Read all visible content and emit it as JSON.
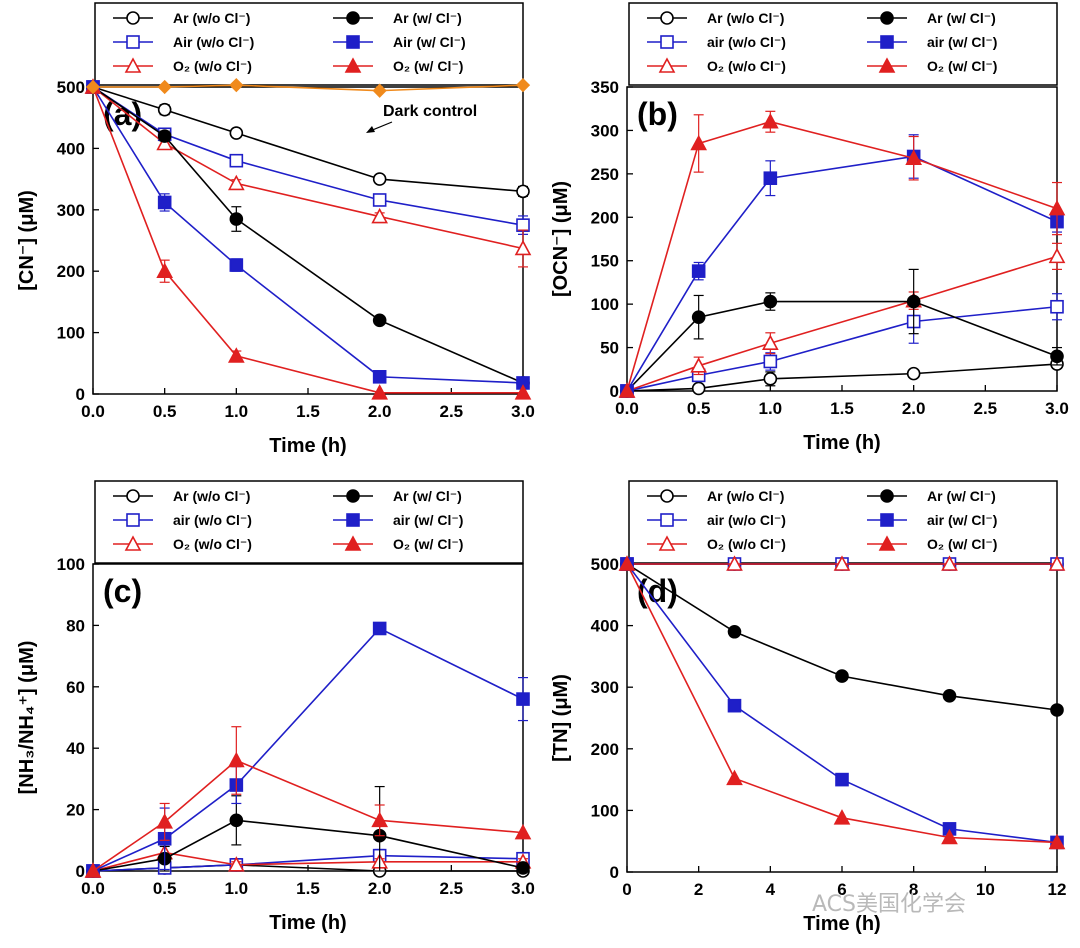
{
  "watermark": "ACS美国化学会",
  "chart_data": [
    {
      "type": "line",
      "panel_label": "(a)",
      "xlabel": "Time (h)",
      "ylabel": "[CN⁻] (μM)",
      "xlim": [
        0,
        3
      ],
      "ylim": [
        0,
        500
      ],
      "xticks": [
        "0.0",
        "0.5",
        "1.0",
        "1.5",
        "2.0",
        "2.5",
        "3.0"
      ],
      "yticks": [
        "0",
        "100",
        "200",
        "300",
        "400",
        "500"
      ],
      "legend_placement": "top, above plot",
      "annotation": "Dark control",
      "series": [
        {
          "name": "Ar (w/o Cl⁻)",
          "color": "#000000",
          "marker": "circle",
          "filled": false,
          "x": [
            0,
            0.5,
            1,
            2,
            3
          ],
          "values": [
            500,
            463,
            425,
            350,
            330
          ],
          "err": [
            0,
            8,
            6,
            6,
            8
          ]
        },
        {
          "name": "Air (w/o Cl⁻)",
          "color": "#1f1fc8",
          "marker": "square",
          "filled": false,
          "x": [
            0,
            0.5,
            1,
            2,
            3
          ],
          "values": [
            500,
            423,
            380,
            316,
            275
          ],
          "err": [
            0,
            10,
            6,
            6,
            15
          ]
        },
        {
          "name": "O₂ (w/o Cl⁻)",
          "color": "#e02020",
          "marker": "triangle",
          "filled": false,
          "x": [
            0,
            0.5,
            1,
            2,
            3
          ],
          "values": [
            500,
            408,
            343,
            289,
            237
          ],
          "err": [
            0,
            8,
            6,
            6,
            30
          ]
        },
        {
          "name": "Ar (w/ Cl⁻)",
          "color": "#000000",
          "marker": "circle",
          "filled": true,
          "x": [
            0,
            0.5,
            1,
            2,
            3
          ],
          "values": [
            500,
            420,
            285,
            120,
            18
          ],
          "err": [
            0,
            8,
            20,
            5,
            3
          ]
        },
        {
          "name": "Air (w/ Cl⁻)",
          "color": "#1f1fc8",
          "marker": "square",
          "filled": true,
          "x": [
            0,
            0.5,
            1,
            2,
            3
          ],
          "values": [
            500,
            312,
            210,
            28,
            18
          ],
          "err": [
            0,
            14,
            10,
            3,
            3
          ]
        },
        {
          "name": "O₂ (w/ Cl⁻)",
          "color": "#e02020",
          "marker": "triangle",
          "filled": true,
          "x": [
            0,
            0.5,
            1,
            2,
            3
          ],
          "values": [
            500,
            200,
            62,
            2,
            2
          ],
          "err": [
            0,
            18,
            8,
            0,
            0
          ]
        },
        {
          "name": "",
          "color": "#f08a1c",
          "marker": "diamond",
          "filled": true,
          "nolegend": true,
          "x": [
            0,
            0.5,
            1,
            2,
            3
          ],
          "values": [
            500,
            500,
            503,
            494,
            503
          ],
          "err": [
            0,
            0,
            0,
            0,
            0
          ]
        }
      ]
    },
    {
      "type": "line",
      "panel_label": "(b)",
      "xlabel": "Time (h)",
      "ylabel": "[OCN⁻] (μM)",
      "xlim": [
        0,
        3
      ],
      "ylim": [
        0,
        350
      ],
      "xticks": [
        "0.0",
        "0.5",
        "1.0",
        "1.5",
        "2.0",
        "2.5",
        "3.0"
      ],
      "yticks": [
        "0",
        "50",
        "100",
        "150",
        "200",
        "250",
        "300",
        "350"
      ],
      "legend_placement": "top, above plot",
      "series": [
        {
          "name": "Ar (w/o Cl⁻)",
          "color": "#000000",
          "marker": "circle",
          "filled": false,
          "x": [
            0,
            0.5,
            1,
            2,
            3
          ],
          "values": [
            0,
            3,
            14,
            20,
            31
          ],
          "err": [
            0,
            2,
            8,
            3,
            5
          ]
        },
        {
          "name": "air (w/o Cl⁻)",
          "color": "#1f1fc8",
          "marker": "square",
          "filled": false,
          "x": [
            0,
            0.5,
            1,
            2,
            3
          ],
          "values": [
            0,
            18,
            34,
            80,
            97
          ],
          "err": [
            0,
            5,
            10,
            25,
            15
          ]
        },
        {
          "name": "O₂ (w/o Cl⁻)",
          "color": "#e02020",
          "marker": "triangle",
          "filled": false,
          "x": [
            0,
            0.5,
            1,
            2,
            3
          ],
          "values": [
            0,
            29,
            55,
            104,
            155
          ],
          "err": [
            0,
            10,
            12,
            10,
            15
          ]
        },
        {
          "name": "Ar (w/ Cl⁻)",
          "color": "#000000",
          "marker": "circle",
          "filled": true,
          "x": [
            0,
            0.5,
            1,
            2,
            3
          ],
          "values": [
            0,
            85,
            103,
            103,
            40
          ],
          "err": [
            0,
            25,
            10,
            37,
            10
          ]
        },
        {
          "name": "air (w/ Cl⁻)",
          "color": "#1f1fc8",
          "marker": "square",
          "filled": true,
          "x": [
            0,
            0.5,
            1,
            2,
            3
          ],
          "values": [
            0,
            138,
            245,
            270,
            195
          ],
          "err": [
            0,
            10,
            20,
            25,
            12
          ]
        },
        {
          "name": "O₂ (w/ Cl⁻)",
          "color": "#e02020",
          "marker": "triangle",
          "filled": true,
          "x": [
            0,
            0.5,
            1,
            2,
            3
          ],
          "values": [
            0,
            285,
            310,
            268,
            210
          ],
          "err": [
            0,
            33,
            12,
            25,
            30
          ]
        }
      ]
    },
    {
      "type": "line",
      "panel_label": "(c)",
      "xlabel": "Time (h)",
      "ylabel": "[NH₃/NH₄⁺] (μM)",
      "xlim": [
        0,
        3
      ],
      "ylim": [
        0,
        100
      ],
      "xticks": [
        "0.0",
        "0.5",
        "1.0",
        "1.5",
        "2.0",
        "2.5",
        "3.0"
      ],
      "yticks": [
        "0",
        "20",
        "40",
        "60",
        "80",
        "100"
      ],
      "legend_placement": "top, above plot",
      "series": [
        {
          "name": "Ar (w/o Cl⁻)",
          "color": "#000000",
          "marker": "circle",
          "filled": false,
          "x": [
            0,
            0.5,
            1,
            2,
            3
          ],
          "values": [
            0,
            1,
            2,
            0,
            0
          ],
          "err": [
            0,
            0,
            2,
            0,
            0
          ]
        },
        {
          "name": "air (w/o Cl⁻)",
          "color": "#1f1fc8",
          "marker": "square",
          "filled": false,
          "x": [
            0,
            0.5,
            1,
            2,
            3
          ],
          "values": [
            0,
            1,
            2,
            5,
            4
          ],
          "err": [
            0,
            0,
            2,
            2,
            1
          ]
        },
        {
          "name": "O₂ (w/o Cl⁻)",
          "color": "#e02020",
          "marker": "triangle",
          "filled": false,
          "x": [
            0,
            0.5,
            1,
            2,
            3
          ],
          "values": [
            0,
            6,
            2,
            3,
            3
          ],
          "err": [
            0,
            0,
            1,
            1,
            1
          ]
        },
        {
          "name": "Ar (w/ Cl⁻)",
          "color": "#000000",
          "marker": "circle",
          "filled": true,
          "x": [
            0,
            0.5,
            1,
            2,
            3
          ],
          "values": [
            0,
            4,
            16.5,
            11.5,
            1
          ],
          "err": [
            0,
            4,
            8,
            16,
            1
          ]
        },
        {
          "name": "air (w/ Cl⁻)",
          "color": "#1f1fc8",
          "marker": "square",
          "filled": true,
          "x": [
            0,
            0.5,
            1,
            2,
            3
          ],
          "values": [
            0,
            10.5,
            28,
            79,
            56
          ],
          "err": [
            0,
            10,
            6,
            1,
            7
          ]
        },
        {
          "name": "O₂ (w/ Cl⁻)",
          "color": "#e02020",
          "marker": "triangle",
          "filled": true,
          "x": [
            0,
            0.5,
            1,
            2,
            3
          ],
          "values": [
            0,
            16,
            36,
            16.5,
            12.5
          ],
          "err": [
            0,
            6,
            11,
            5,
            0
          ]
        }
      ]
    },
    {
      "type": "line",
      "panel_label": "(d)",
      "xlabel": "Time (h)",
      "ylabel": "[TN] (μM)",
      "xlim": [
        0,
        12
      ],
      "ylim": [
        0,
        500
      ],
      "xticks": [
        "0",
        "2",
        "4",
        "6",
        "8",
        "10",
        "12"
      ],
      "yticks": [
        "0",
        "100",
        "200",
        "300",
        "400",
        "500"
      ],
      "legend_placement": "top, above plot",
      "series": [
        {
          "name": "Ar (w/o Cl⁻)",
          "color": "#000000",
          "marker": "circle",
          "filled": false,
          "x": [
            0,
            3,
            6,
            9,
            12
          ],
          "values": [
            500,
            500,
            500,
            500,
            500
          ],
          "err": [
            0,
            0,
            0,
            0,
            0
          ]
        },
        {
          "name": "air (w/o Cl⁻)",
          "color": "#1f1fc8",
          "marker": "square",
          "filled": false,
          "x": [
            0,
            3,
            6,
            9,
            12
          ],
          "values": [
            500,
            500,
            500,
            500,
            500
          ],
          "err": [
            0,
            0,
            0,
            0,
            0
          ]
        },
        {
          "name": "O₂ (w/o Cl⁻)",
          "color": "#e02020",
          "marker": "triangle",
          "filled": false,
          "x": [
            0,
            3,
            6,
            9,
            12
          ],
          "values": [
            500,
            500,
            500,
            500,
            500
          ],
          "err": [
            0,
            0,
            0,
            0,
            0
          ]
        },
        {
          "name": "Ar (w/ Cl⁻)",
          "color": "#000000",
          "marker": "circle",
          "filled": true,
          "x": [
            0,
            3,
            6,
            9,
            12
          ],
          "values": [
            500,
            390,
            318,
            286,
            263
          ],
          "err": [
            0,
            0,
            0,
            0,
            0
          ]
        },
        {
          "name": "air (w/ Cl⁻)",
          "color": "#1f1fc8",
          "marker": "square",
          "filled": true,
          "x": [
            0,
            3,
            6,
            9,
            12
          ],
          "values": [
            500,
            270,
            150,
            70,
            48
          ],
          "err": [
            0,
            0,
            0,
            0,
            0
          ]
        },
        {
          "name": "O₂ (w/ Cl⁻)",
          "color": "#e02020",
          "marker": "triangle",
          "filled": true,
          "x": [
            0,
            3,
            6,
            9,
            12
          ],
          "values": [
            500,
            152,
            88,
            56,
            48
          ],
          "err": [
            0,
            0,
            0,
            0,
            0
          ]
        }
      ]
    }
  ]
}
